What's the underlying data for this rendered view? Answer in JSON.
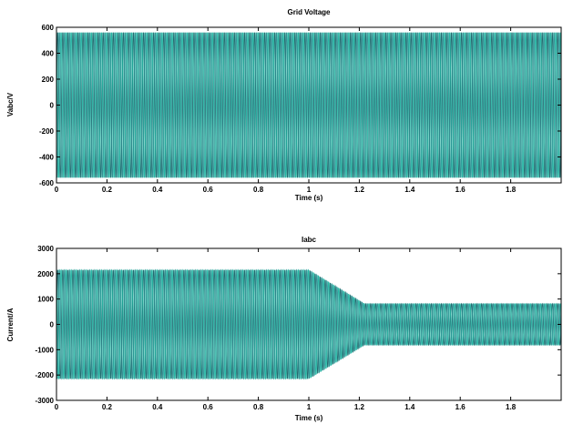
{
  "colors": {
    "trace_fill": "#1bb3a0",
    "trace_dark": "#1a5f66",
    "axis": "#000000"
  },
  "chart_data": [
    {
      "type": "line",
      "title": "Grid Voltage",
      "xlabel": "Time (s)",
      "ylabel": "Vabc/V",
      "xlim": [
        0,
        2
      ],
      "ylim": [
        -600,
        600
      ],
      "xticks": [
        0,
        0.2,
        0.4,
        0.6,
        0.8,
        1,
        1.2,
        1.4,
        1.6,
        1.8
      ],
      "xtick_labels": [
        "0",
        "0.2",
        "0.4",
        "0.6",
        "0.8",
        "1",
        "1.2",
        "1.4",
        "1.6",
        "1.8"
      ],
      "yticks": [
        -600,
        -400,
        -200,
        0,
        200,
        400,
        600
      ],
      "ytick_labels": [
        "-600",
        "-400",
        "-200",
        "0",
        "200",
        "400",
        "600"
      ],
      "grid": false,
      "series": [
        {
          "frequency_hz": 50,
          "phases": 3,
          "envelope": {
            "t": [
              0,
              2
            ],
            "amplitude": [
              560,
              560
            ]
          }
        }
      ]
    },
    {
      "type": "line",
      "title": "Iabc",
      "xlabel": "Time (s)",
      "ylabel": "Current/A",
      "xlim": [
        0,
        2
      ],
      "ylim": [
        -3000,
        3000
      ],
      "xticks": [
        0,
        0.2,
        0.4,
        0.6,
        0.8,
        1,
        1.2,
        1.4,
        1.6,
        1.8
      ],
      "xtick_labels": [
        "0",
        "0.2",
        "0.4",
        "0.6",
        "0.8",
        "1",
        "1.2",
        "1.4",
        "1.6",
        "1.8"
      ],
      "yticks": [
        -3000,
        -2000,
        -1000,
        0,
        1000,
        2000,
        3000
      ],
      "ytick_labels": [
        "-3000",
        "-2000",
        "-1000",
        "0",
        "1000",
        "2000",
        "3000"
      ],
      "grid": false,
      "series": [
        {
          "frequency_hz": 50,
          "phases": 3,
          "envelope": {
            "t": [
              0,
              1.0,
              1.22,
              2
            ],
            "amplitude": [
              2150,
              2150,
              820,
              820
            ]
          }
        }
      ]
    }
  ]
}
